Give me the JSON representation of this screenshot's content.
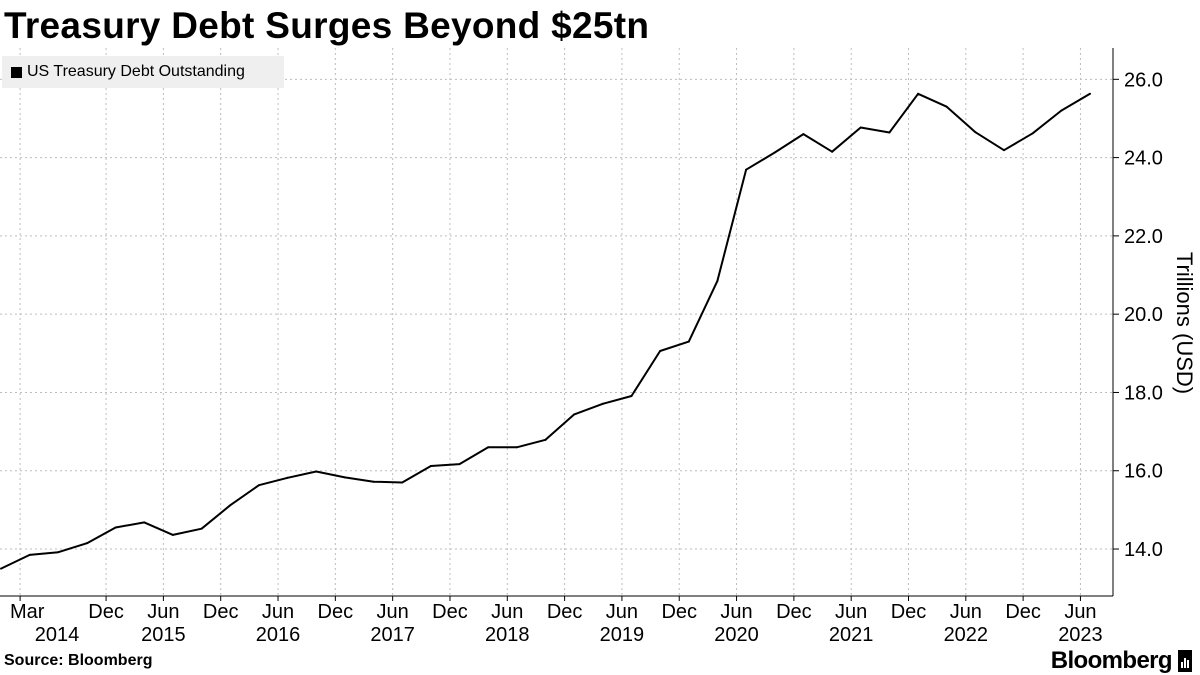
{
  "chart_data": {
    "type": "line",
    "title": "Treasury Debt Surges Beyond $25tn",
    "ylabel": "Trillions (USD)",
    "ylim": [
      12.8,
      26.8
    ],
    "grid": true,
    "legend_position": "top-left",
    "series": [
      {
        "name": "US Treasury Debt Outstanding",
        "color": "#000000",
        "x": [
          "2014-01",
          "2014-04",
          "2014-07",
          "2014-10",
          "2015-01",
          "2015-04",
          "2015-07",
          "2015-10",
          "2016-01",
          "2016-04",
          "2016-07",
          "2016-10",
          "2017-01",
          "2017-04",
          "2017-07",
          "2017-10",
          "2018-01",
          "2018-04",
          "2018-07",
          "2018-10",
          "2019-01",
          "2019-04",
          "2019-07",
          "2019-10",
          "2020-01",
          "2020-04",
          "2020-07",
          "2020-10",
          "2021-01",
          "2021-04",
          "2021-07",
          "2021-10",
          "2022-01",
          "2022-04",
          "2022-07",
          "2022-10",
          "2023-01",
          "2023-04",
          "2023-07"
        ],
        "values": [
          13.5,
          13.85,
          13.92,
          14.15,
          14.55,
          14.68,
          14.36,
          14.52,
          15.12,
          15.63,
          15.82,
          15.98,
          15.83,
          15.72,
          15.7,
          16.12,
          16.17,
          16.6,
          16.6,
          16.79,
          17.44,
          17.71,
          17.91,
          19.06,
          19.3,
          20.85,
          23.69,
          24.13,
          24.6,
          24.15,
          24.77,
          24.64,
          25.63,
          25.3,
          24.65,
          24.19,
          24.62,
          25.2,
          25.63
        ]
      }
    ],
    "y_ticks": [
      "14.0",
      "16.0",
      "18.0",
      "20.0",
      "22.0",
      "24.0",
      "26.0"
    ],
    "x_ticks": [
      {
        "month": "Mar",
        "year": "2014",
        "date": "2014-03"
      },
      {
        "month": "Dec",
        "year": "",
        "date": "2014-12"
      },
      {
        "month": "Jun",
        "year": "2015",
        "date": "2015-06"
      },
      {
        "month": "Dec",
        "year": "",
        "date": "2015-12"
      },
      {
        "month": "Jun",
        "year": "2016",
        "date": "2016-06"
      },
      {
        "month": "Dec",
        "year": "",
        "date": "2016-12"
      },
      {
        "month": "Jun",
        "year": "2017",
        "date": "2017-06"
      },
      {
        "month": "Dec",
        "year": "",
        "date": "2017-12"
      },
      {
        "month": "Jun",
        "year": "2018",
        "date": "2018-06"
      },
      {
        "month": "Dec",
        "year": "",
        "date": "2018-12"
      },
      {
        "month": "Jun",
        "year": "2019",
        "date": "2019-06"
      },
      {
        "month": "Dec",
        "year": "",
        "date": "2019-12"
      },
      {
        "month": "Jun",
        "year": "2020",
        "date": "2020-06"
      },
      {
        "month": "Dec",
        "year": "",
        "date": "2020-12"
      },
      {
        "month": "Jun",
        "year": "2021",
        "date": "2021-06"
      },
      {
        "month": "Dec",
        "year": "",
        "date": "2021-12"
      },
      {
        "month": "Jun",
        "year": "2022",
        "date": "2022-06"
      },
      {
        "month": "Dec",
        "year": "",
        "date": "2022-12"
      },
      {
        "month": "Jun",
        "year": "2023",
        "date": "2023-06"
      }
    ]
  },
  "footer": {
    "source": "Source: Bloomberg",
    "brand": "Bloomberg",
    "brand_icon": "bar-chart-icon"
  }
}
